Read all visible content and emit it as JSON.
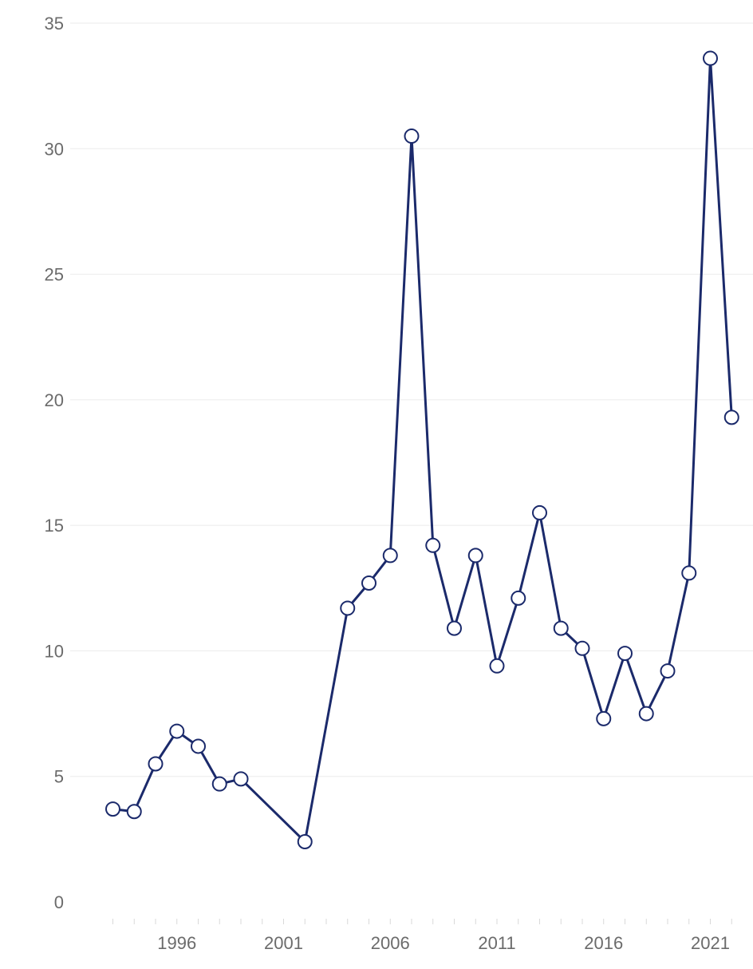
{
  "chart_data": {
    "type": "line",
    "title": "",
    "xlabel": "",
    "ylabel": "",
    "xlim": [
      1991,
      2023
    ],
    "ylim": [
      0,
      35
    ],
    "y_ticks": [
      0,
      5,
      10,
      15,
      20,
      25,
      30,
      35
    ],
    "x_ticks": [
      1996,
      2001,
      2006,
      2011,
      2016,
      2021
    ],
    "grid": "horizontal",
    "colors": {
      "line": "#1b2a6b",
      "marker_fill": "#ffffff"
    },
    "series": [
      {
        "x": [
          1993,
          1994,
          1995,
          1996,
          1997,
          1998,
          1999,
          2002,
          2004,
          2005,
          2006,
          2007,
          2008,
          2009,
          2010,
          2011,
          2012,
          2013,
          2014,
          2015,
          2016,
          2017,
          2018,
          2019,
          2020,
          2021,
          2022
        ],
        "values": [
          3.7,
          3.6,
          5.5,
          6.8,
          6.2,
          4.7,
          4.9,
          2.4,
          11.7,
          12.7,
          13.8,
          30.5,
          14.2,
          10.9,
          13.8,
          9.4,
          12.1,
          15.5,
          10.9,
          10.1,
          7.3,
          9.9,
          7.5,
          9.2,
          13.1,
          33.6,
          19.3
        ]
      }
    ]
  }
}
